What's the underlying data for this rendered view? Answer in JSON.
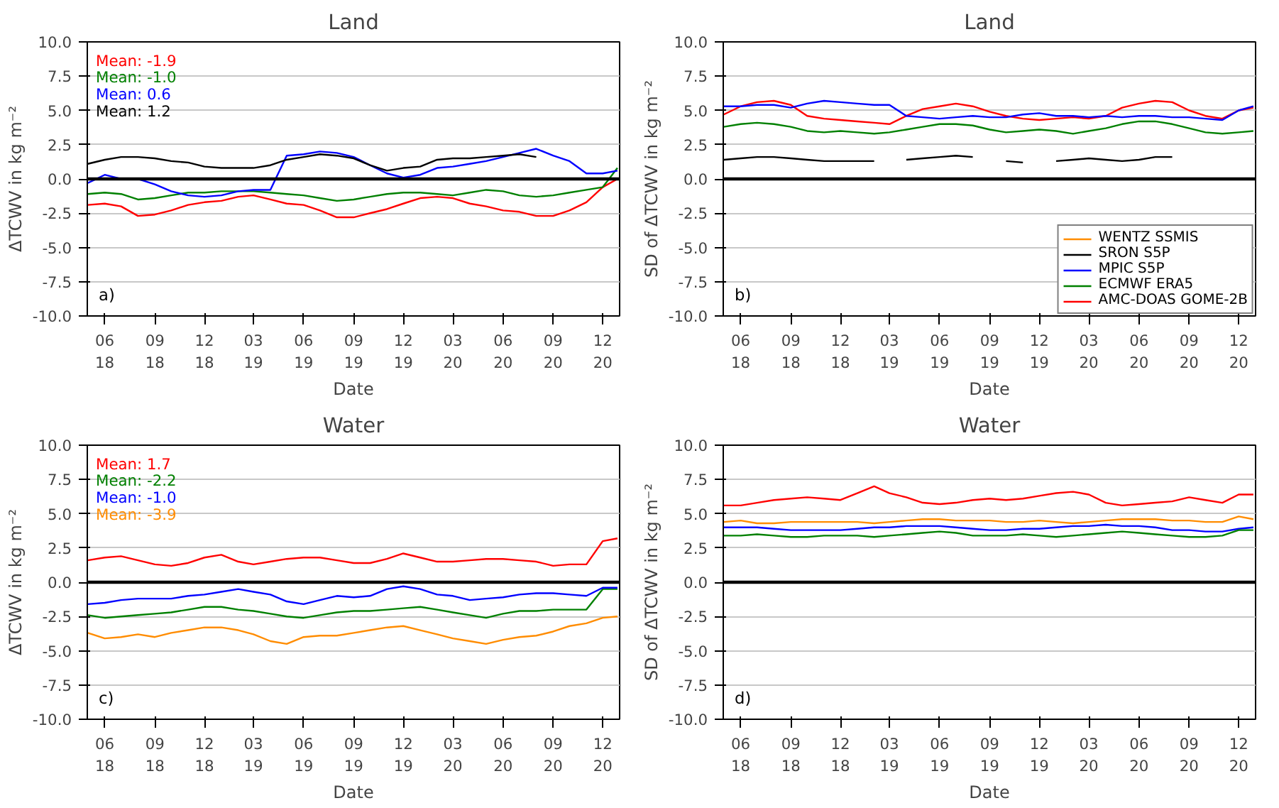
{
  "chart_data": [
    {
      "type": "line",
      "title": "Land",
      "xlabel": "Date",
      "ylabel": "ΔTCWV in kg m⁻²",
      "x": [
        "2018-05-01",
        "2018-06-01",
        "2018-07-01",
        "2018-08-01",
        "2018-09-01",
        "2018-10-01",
        "2018-11-01",
        "2018-12-01",
        "2019-01-01",
        "2019-02-01",
        "2019-03-01",
        "2019-04-01",
        "2019-05-01",
        "2019-06-01",
        "2019-07-01",
        "2019-08-01",
        "2019-09-01",
        "2019-10-01",
        "2019-11-01",
        "2019-12-01",
        "2020-01-01",
        "2020-02-01",
        "2020-03-01",
        "2020-04-01",
        "2020-05-01",
        "2020-06-01",
        "2020-07-01",
        "2020-08-01",
        "2020-09-01",
        "2020-10-01",
        "2020-11-01",
        "2020-12-01",
        "2020-12-28"
      ],
      "series": [
        {
          "color": "#ff0000",
          "values": [
            -1.9,
            -1.8,
            -2.0,
            -2.7,
            -2.6,
            -2.3,
            -1.9,
            -1.7,
            -1.6,
            -1.3,
            -1.2,
            -1.5,
            -1.8,
            -1.9,
            -2.3,
            -2.8,
            -2.8,
            -2.5,
            -2.2,
            -1.8,
            -1.4,
            -1.3,
            -1.4,
            -1.8,
            -2.0,
            -2.3,
            -2.4,
            -2.7,
            -2.7,
            -2.3,
            -1.7,
            -0.6,
            0.0
          ]
        },
        {
          "color": "#008000",
          "values": [
            -1.1,
            -1.0,
            -1.1,
            -1.5,
            -1.4,
            -1.2,
            -1.0,
            -1.0,
            -0.9,
            -0.9,
            -0.9,
            -1.0,
            -1.1,
            -1.2,
            -1.4,
            -1.6,
            -1.5,
            -1.3,
            -1.1,
            -1.0,
            -1.0,
            -1.1,
            -1.2,
            -1.0,
            -0.8,
            -0.9,
            -1.2,
            -1.3,
            -1.2,
            -1.0,
            -0.8,
            -0.6,
            0.8
          ]
        },
        {
          "color": "#0000ff",
          "values": [
            -0.3,
            0.3,
            0.0,
            0.0,
            -0.4,
            -0.9,
            -1.2,
            -1.3,
            -1.2,
            -0.9,
            -0.8,
            -0.8,
            1.7,
            1.8,
            2.0,
            1.9,
            1.6,
            1.0,
            0.4,
            0.1,
            0.3,
            0.8,
            0.9,
            1.1,
            1.3,
            1.6,
            1.9,
            2.2,
            1.7,
            1.3,
            0.4,
            0.4,
            0.6
          ]
        },
        {
          "color": "#000000",
          "values": [
            1.1,
            1.4,
            1.6,
            1.6,
            1.5,
            1.3,
            1.2,
            0.9,
            0.8,
            0.8,
            0.8,
            1.0,
            1.4,
            1.6,
            1.8,
            1.7,
            1.5,
            1.0,
            0.6,
            0.8,
            0.9,
            1.4,
            1.5,
            1.5,
            1.6,
            1.7,
            1.8,
            1.6,
            null,
            null,
            null,
            null,
            null
          ]
        }
      ],
      "annotations": [
        "Mean: -1.9",
        "Mean: -1.0",
        "Mean: 0.6",
        "Mean: 1.2",
        "a)"
      ],
      "xlim": [
        "2018-04-30",
        "2021-01-01"
      ],
      "xticks": [
        {
          "value": "2018-06-01",
          "label": "06\n18"
        },
        {
          "value": "2018-09-01",
          "label": "09\n18"
        },
        {
          "value": "2018-12-01",
          "label": "12\n18"
        },
        {
          "value": "2019-03-01",
          "label": "03\n19"
        },
        {
          "value": "2019-06-01",
          "label": "06\n19"
        },
        {
          "value": "2019-09-01",
          "label": "09\n19"
        },
        {
          "value": "2019-12-01",
          "label": "12\n19"
        },
        {
          "value": "2020-03-01",
          "label": "03\n20"
        },
        {
          "value": "2020-06-01",
          "label": "06\n20"
        },
        {
          "value": "2020-09-01",
          "label": "09\n20"
        },
        {
          "value": "2020-12-01",
          "label": "12\n20"
        }
      ],
      "ylim": [
        -10,
        10
      ],
      "yticks": [
        {
          "value": -10,
          "label": "-10.0"
        },
        {
          "value": -7.5,
          "label": "-7.5"
        },
        {
          "value": -5,
          "label": "-5.0"
        },
        {
          "value": -2.5,
          "label": "-2.5"
        },
        {
          "value": 0,
          "label": "0.0"
        },
        {
          "value": 2.5,
          "label": "2.5"
        },
        {
          "value": 5,
          "label": "5.0"
        },
        {
          "value": 7.5,
          "label": "7.5"
        },
        {
          "value": 10,
          "label": "10.0"
        }
      ],
      "ref_lines": [
        {
          "axis": "y",
          "value": 0,
          "color": "#000000"
        }
      ],
      "grid": "y"
    },
    {
      "type": "line",
      "title": "Land",
      "xlabel": "Date",
      "ylabel": "SD of ΔTCWV in kg m⁻²",
      "x": [
        "2018-05-01",
        "2018-06-01",
        "2018-07-01",
        "2018-08-01",
        "2018-09-01",
        "2018-10-01",
        "2018-11-01",
        "2018-12-01",
        "2019-01-01",
        "2019-02-01",
        "2019-03-01",
        "2019-04-01",
        "2019-05-01",
        "2019-06-01",
        "2019-07-01",
        "2019-08-01",
        "2019-09-01",
        "2019-10-01",
        "2019-11-01",
        "2019-12-01",
        "2020-01-01",
        "2020-02-01",
        "2020-03-01",
        "2020-04-01",
        "2020-05-01",
        "2020-06-01",
        "2020-07-01",
        "2020-08-01",
        "2020-09-01",
        "2020-10-01",
        "2020-11-01",
        "2020-12-01",
        "2020-12-28"
      ],
      "series": [
        {
          "name": "AMC-DOAS GOME-2B",
          "color": "#ff0000",
          "values": [
            4.7,
            5.3,
            5.6,
            5.7,
            5.4,
            4.6,
            4.4,
            4.3,
            4.2,
            4.1,
            4.0,
            4.6,
            5.1,
            5.3,
            5.5,
            5.3,
            4.9,
            4.6,
            4.4,
            4.3,
            4.4,
            4.5,
            4.4,
            4.6,
            5.2,
            5.5,
            5.7,
            5.6,
            5.0,
            4.6,
            4.4,
            5.0,
            5.2
          ]
        },
        {
          "name": "ECMWF ERA5",
          "color": "#008000",
          "values": [
            3.8,
            4.0,
            4.1,
            4.0,
            3.8,
            3.5,
            3.4,
            3.5,
            3.4,
            3.3,
            3.4,
            3.6,
            3.8,
            4.0,
            4.0,
            3.9,
            3.6,
            3.4,
            3.5,
            3.6,
            3.5,
            3.3,
            3.5,
            3.7,
            4.0,
            4.2,
            4.2,
            4.0,
            3.7,
            3.4,
            3.3,
            3.4,
            3.5
          ]
        },
        {
          "name": "MPIC S5P",
          "color": "#0000ff",
          "values": [
            5.3,
            5.3,
            5.4,
            5.4,
            5.2,
            5.5,
            5.7,
            5.6,
            5.5,
            5.4,
            5.4,
            4.6,
            4.5,
            4.4,
            4.5,
            4.6,
            4.5,
            4.5,
            4.7,
            4.8,
            4.6,
            4.6,
            4.5,
            4.6,
            4.5,
            4.6,
            4.6,
            4.5,
            4.5,
            4.4,
            4.3,
            5.0,
            5.3
          ]
        },
        {
          "name": "SRON S5P",
          "color": "#000000",
          "values": [
            1.4,
            1.5,
            1.6,
            1.6,
            1.5,
            1.4,
            1.3,
            1.3,
            1.3,
            1.3,
            null,
            1.4,
            1.5,
            1.6,
            1.7,
            1.6,
            null,
            1.3,
            1.2,
            null,
            1.3,
            1.4,
            1.5,
            1.4,
            1.3,
            1.4,
            1.6,
            1.6,
            null,
            null,
            null,
            null,
            null
          ]
        },
        {
          "name": "WENTZ SSMIS",
          "color": "#ff8c00",
          "values": [
            null,
            null,
            null,
            null,
            null,
            null,
            null,
            null,
            null,
            null,
            null,
            null,
            null,
            null,
            null,
            null,
            null,
            null,
            null,
            null,
            null,
            null,
            null,
            null,
            null,
            null,
            null,
            null,
            null,
            null,
            null,
            null,
            null
          ]
        }
      ],
      "annotations": [
        "b)"
      ],
      "legend": "bottom right",
      "xlim": [
        "2018-04-30",
        "2021-01-01"
      ],
      "xticks": [
        {
          "value": "2018-06-01",
          "label": "06\n18"
        },
        {
          "value": "2018-09-01",
          "label": "09\n18"
        },
        {
          "value": "2018-12-01",
          "label": "12\n18"
        },
        {
          "value": "2019-03-01",
          "label": "03\n19"
        },
        {
          "value": "2019-06-01",
          "label": "06\n19"
        },
        {
          "value": "2019-09-01",
          "label": "09\n19"
        },
        {
          "value": "2019-12-01",
          "label": "12\n19"
        },
        {
          "value": "2020-03-01",
          "label": "03\n20"
        },
        {
          "value": "2020-06-01",
          "label": "06\n20"
        },
        {
          "value": "2020-09-01",
          "label": "09\n20"
        },
        {
          "value": "2020-12-01",
          "label": "12\n20"
        }
      ],
      "ylim": [
        -10,
        10
      ],
      "yticks": [
        {
          "value": -10,
          "label": "-10.0"
        },
        {
          "value": -7.5,
          "label": "-7.5"
        },
        {
          "value": -5,
          "label": "-5.0"
        },
        {
          "value": -2.5,
          "label": "-2.5"
        },
        {
          "value": 0,
          "label": "0.0"
        },
        {
          "value": 2.5,
          "label": "2.5"
        },
        {
          "value": 5,
          "label": "5.0"
        },
        {
          "value": 7.5,
          "label": "7.5"
        },
        {
          "value": 10,
          "label": "10.0"
        }
      ],
      "ref_lines": [
        {
          "axis": "y",
          "value": 0,
          "color": "#000000"
        }
      ],
      "grid": "y"
    },
    {
      "type": "line",
      "title": "Water",
      "xlabel": "Date",
      "ylabel": "ΔTCWV in kg m⁻²",
      "x": [
        "2018-05-01",
        "2018-06-01",
        "2018-07-01",
        "2018-08-01",
        "2018-09-01",
        "2018-10-01",
        "2018-11-01",
        "2018-12-01",
        "2019-01-01",
        "2019-02-01",
        "2019-03-01",
        "2019-04-01",
        "2019-05-01",
        "2019-06-01",
        "2019-07-01",
        "2019-08-01",
        "2019-09-01",
        "2019-10-01",
        "2019-11-01",
        "2019-12-01",
        "2020-01-01",
        "2020-02-01",
        "2020-03-01",
        "2020-04-01",
        "2020-05-01",
        "2020-06-01",
        "2020-07-01",
        "2020-08-01",
        "2020-09-01",
        "2020-10-01",
        "2020-11-01",
        "2020-12-01",
        "2020-12-28"
      ],
      "series": [
        {
          "color": "#ff0000",
          "values": [
            1.6,
            1.8,
            1.9,
            1.6,
            1.3,
            1.2,
            1.4,
            1.8,
            2.0,
            1.5,
            1.3,
            1.5,
            1.7,
            1.8,
            1.8,
            1.6,
            1.4,
            1.4,
            1.7,
            2.1,
            1.8,
            1.5,
            1.5,
            1.6,
            1.7,
            1.7,
            1.6,
            1.5,
            1.2,
            1.3,
            1.3,
            3.0,
            3.2
          ]
        },
        {
          "color": "#008000",
          "values": [
            -2.4,
            -2.6,
            -2.5,
            -2.4,
            -2.3,
            -2.2,
            -2.0,
            -1.8,
            -1.8,
            -2.0,
            -2.1,
            -2.3,
            -2.5,
            -2.6,
            -2.4,
            -2.2,
            -2.1,
            -2.1,
            -2.0,
            -1.9,
            -1.8,
            -2.0,
            -2.2,
            -2.4,
            -2.6,
            -2.3,
            -2.1,
            -2.1,
            -2.0,
            -2.0,
            -2.0,
            -0.5,
            -0.5
          ]
        },
        {
          "color": "#0000ff",
          "values": [
            -1.6,
            -1.5,
            -1.3,
            -1.2,
            -1.2,
            -1.2,
            -1.0,
            -0.9,
            -0.7,
            -0.5,
            -0.7,
            -0.9,
            -1.4,
            -1.6,
            -1.3,
            -1.0,
            -1.1,
            -1.0,
            -0.5,
            -0.3,
            -0.5,
            -0.9,
            -1.0,
            -1.3,
            -1.2,
            -1.1,
            -0.9,
            -0.8,
            -0.8,
            -0.9,
            -1.0,
            -0.4,
            -0.4
          ]
        },
        {
          "color": "#ff8c00",
          "values": [
            -3.7,
            -4.1,
            -4.0,
            -3.8,
            -4.0,
            -3.7,
            -3.5,
            -3.3,
            -3.3,
            -3.5,
            -3.8,
            -4.3,
            -4.5,
            -4.0,
            -3.9,
            -3.9,
            -3.7,
            -3.5,
            -3.3,
            -3.2,
            -3.5,
            -3.8,
            -4.1,
            -4.3,
            -4.5,
            -4.2,
            -4.0,
            -3.9,
            -3.6,
            -3.2,
            -3.0,
            -2.6,
            -2.5
          ]
        }
      ],
      "annotations": [
        "Mean: 1.7",
        "Mean: -2.2",
        "Mean: -1.0",
        "Mean: -3.9",
        "c)"
      ],
      "xlim": [
        "2018-04-30",
        "2021-01-01"
      ],
      "xticks": [
        {
          "value": "2018-06-01",
          "label": "06\n18"
        },
        {
          "value": "2018-09-01",
          "label": "09\n18"
        },
        {
          "value": "2018-12-01",
          "label": "12\n18"
        },
        {
          "value": "2019-03-01",
          "label": "03\n19"
        },
        {
          "value": "2019-06-01",
          "label": "06\n19"
        },
        {
          "value": "2019-09-01",
          "label": "09\n19"
        },
        {
          "value": "2019-12-01",
          "label": "12\n19"
        },
        {
          "value": "2020-03-01",
          "label": "03\n20"
        },
        {
          "value": "2020-06-01",
          "label": "06\n20"
        },
        {
          "value": "2020-09-01",
          "label": "09\n20"
        },
        {
          "value": "2020-12-01",
          "label": "12\n20"
        }
      ],
      "ylim": [
        -10,
        10
      ],
      "yticks": [
        {
          "value": -10,
          "label": "-10.0"
        },
        {
          "value": -7.5,
          "label": "-7.5"
        },
        {
          "value": -5,
          "label": "-5.0"
        },
        {
          "value": -2.5,
          "label": "-2.5"
        },
        {
          "value": 0,
          "label": "0.0"
        },
        {
          "value": 2.5,
          "label": "2.5"
        },
        {
          "value": 5,
          "label": "5.0"
        },
        {
          "value": 7.5,
          "label": "7.5"
        },
        {
          "value": 10,
          "label": "10.0"
        }
      ],
      "ref_lines": [
        {
          "axis": "y",
          "value": 0,
          "color": "#000000"
        }
      ],
      "grid": "y"
    },
    {
      "type": "line",
      "title": "Water",
      "xlabel": "Date",
      "ylabel": "SD of ΔTCWV in kg m⁻²",
      "x": [
        "2018-05-01",
        "2018-06-01",
        "2018-07-01",
        "2018-08-01",
        "2018-09-01",
        "2018-10-01",
        "2018-11-01",
        "2018-12-01",
        "2019-01-01",
        "2019-02-01",
        "2019-03-01",
        "2019-04-01",
        "2019-05-01",
        "2019-06-01",
        "2019-07-01",
        "2019-08-01",
        "2019-09-01",
        "2019-10-01",
        "2019-11-01",
        "2019-12-01",
        "2020-01-01",
        "2020-02-01",
        "2020-03-01",
        "2020-04-01",
        "2020-05-01",
        "2020-06-01",
        "2020-07-01",
        "2020-08-01",
        "2020-09-01",
        "2020-10-01",
        "2020-11-01",
        "2020-12-01",
        "2020-12-28"
      ],
      "series": [
        {
          "color": "#ff0000",
          "values": [
            5.6,
            5.6,
            5.8,
            6.0,
            6.1,
            6.2,
            6.1,
            6.0,
            6.5,
            7.0,
            6.5,
            6.2,
            5.8,
            5.7,
            5.8,
            6.0,
            6.1,
            6.0,
            6.1,
            6.3,
            6.5,
            6.6,
            6.4,
            5.8,
            5.6,
            5.7,
            5.8,
            5.9,
            6.2,
            6.0,
            5.8,
            6.4,
            6.4
          ]
        },
        {
          "color": "#ff8c00",
          "values": [
            4.4,
            4.5,
            4.3,
            4.3,
            4.4,
            4.4,
            4.4,
            4.4,
            4.4,
            4.3,
            4.4,
            4.5,
            4.6,
            4.6,
            4.5,
            4.5,
            4.5,
            4.4,
            4.4,
            4.5,
            4.4,
            4.3,
            4.4,
            4.5,
            4.6,
            4.6,
            4.6,
            4.5,
            4.5,
            4.4,
            4.4,
            4.8,
            4.6
          ]
        },
        {
          "color": "#0000ff",
          "values": [
            4.0,
            4.0,
            4.0,
            3.9,
            3.8,
            3.8,
            3.8,
            3.8,
            3.9,
            4.0,
            4.0,
            4.1,
            4.1,
            4.1,
            4.0,
            3.9,
            3.8,
            3.8,
            3.9,
            3.9,
            4.0,
            4.1,
            4.1,
            4.2,
            4.1,
            4.1,
            4.0,
            3.8,
            3.8,
            3.7,
            3.7,
            3.9,
            4.0
          ]
        },
        {
          "color": "#008000",
          "values": [
            3.4,
            3.4,
            3.5,
            3.4,
            3.3,
            3.3,
            3.4,
            3.4,
            3.4,
            3.3,
            3.4,
            3.5,
            3.6,
            3.7,
            3.6,
            3.4,
            3.4,
            3.4,
            3.5,
            3.4,
            3.3,
            3.4,
            3.5,
            3.6,
            3.7,
            3.6,
            3.5,
            3.4,
            3.3,
            3.3,
            3.4,
            3.8,
            3.8
          ]
        }
      ],
      "annotations": [
        "d)"
      ],
      "xlim": [
        "2018-04-30",
        "2021-01-01"
      ],
      "xticks": [
        {
          "value": "2018-06-01",
          "label": "06\n18"
        },
        {
          "value": "2018-09-01",
          "label": "09\n18"
        },
        {
          "value": "2018-12-01",
          "label": "12\n18"
        },
        {
          "value": "2019-03-01",
          "label": "03\n19"
        },
        {
          "value": "2019-06-01",
          "label": "06\n19"
        },
        {
          "value": "2019-09-01",
          "label": "09\n19"
        },
        {
          "value": "2019-12-01",
          "label": "12\n19"
        },
        {
          "value": "2020-03-01",
          "label": "03\n20"
        },
        {
          "value": "2020-06-01",
          "label": "06\n20"
        },
        {
          "value": "2020-09-01",
          "label": "09\n20"
        },
        {
          "value": "2020-12-01",
          "label": "12\n20"
        }
      ],
      "ylim": [
        -10,
        10
      ],
      "yticks": [
        {
          "value": -10,
          "label": "-10.0"
        },
        {
          "value": -7.5,
          "label": "-7.5"
        },
        {
          "value": -5,
          "label": "-5.0"
        },
        {
          "value": -2.5,
          "label": "-2.5"
        },
        {
          "value": 0,
          "label": "0.0"
        },
        {
          "value": 2.5,
          "label": "2.5"
        },
        {
          "value": 5,
          "label": "5.0"
        },
        {
          "value": 7.5,
          "label": "7.5"
        },
        {
          "value": 10,
          "label": "10.0"
        }
      ],
      "ref_lines": [
        {
          "axis": "y",
          "value": 0,
          "color": "#000000"
        }
      ],
      "grid": "y"
    }
  ]
}
